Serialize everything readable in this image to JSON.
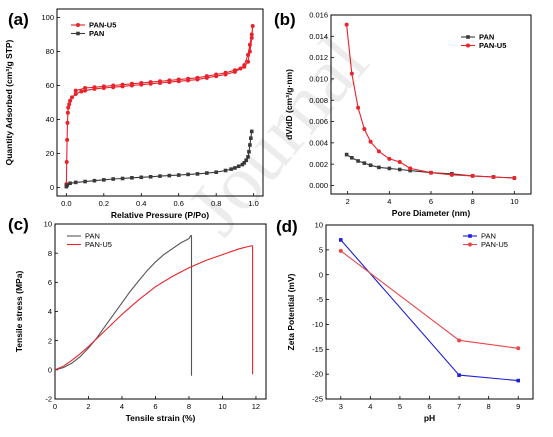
{
  "watermark": "Journal",
  "chart_data": [
    {
      "panel": "(a)",
      "type": "line",
      "xlabel": "Relative Pressure (P/Po)",
      "ylabel": "Quantity Adsorbed (cm³/g STP)",
      "xlim": [
        -0.05,
        1.05
      ],
      "ylim": [
        -5,
        105
      ],
      "xticks": [
        "0.0",
        "0.2",
        "0.4",
        "0.6",
        "0.8",
        "1.0"
      ],
      "yticks": [
        "0",
        "20",
        "40",
        "60",
        "80",
        "100"
      ],
      "legend": "top-left",
      "marker": true,
      "series": [
        {
          "name": "PAN-U5",
          "color": "#e8232b",
          "x": [
            0.0,
            0.002,
            0.004,
            0.006,
            0.008,
            0.01,
            0.015,
            0.02,
            0.03,
            0.05,
            0.08,
            0.1,
            0.15,
            0.2,
            0.25,
            0.3,
            0.35,
            0.4,
            0.45,
            0.5,
            0.55,
            0.6,
            0.65,
            0.7,
            0.75,
            0.8,
            0.85,
            0.9,
            0.93,
            0.95,
            0.97,
            0.98,
            0.99,
            0.995,
            0.99,
            0.98,
            0.97,
            0.95,
            0.9,
            0.85,
            0.8,
            0.75,
            0.7,
            0.65,
            0.6,
            0.55,
            0.5,
            0.45,
            0.4,
            0.35,
            0.3,
            0.25,
            0.2,
            0.15,
            0.1,
            0.05
          ],
          "values": [
            2,
            15,
            28,
            38,
            44,
            47,
            49,
            51,
            53,
            55,
            56.5,
            57,
            58,
            58.5,
            59,
            59.5,
            60,
            60.5,
            61,
            61.5,
            62,
            62.5,
            63,
            63.5,
            64.5,
            65.5,
            66.5,
            68,
            70,
            72,
            78,
            84,
            90,
            95,
            88,
            80,
            74,
            71,
            69,
            67.5,
            66.5,
            65.5,
            64.5,
            64,
            63.5,
            63,
            62.5,
            62,
            61.5,
            61,
            60.5,
            60,
            59.5,
            59,
            58.5,
            57
          ]
        },
        {
          "name": "PAN",
          "color": "#3a3a3a",
          "x": [
            0.0,
            0.005,
            0.02,
            0.05,
            0.1,
            0.15,
            0.2,
            0.25,
            0.3,
            0.35,
            0.4,
            0.45,
            0.5,
            0.55,
            0.6,
            0.65,
            0.7,
            0.75,
            0.8,
            0.85,
            0.88,
            0.9,
            0.92,
            0.94,
            0.95,
            0.96,
            0.97,
            0.975,
            0.98,
            0.985,
            0.99
          ],
          "values": [
            0.5,
            1.5,
            2.5,
            3,
            3.5,
            4,
            4.5,
            5,
            5.3,
            5.7,
            6,
            6.3,
            6.7,
            7,
            7.3,
            7.7,
            8,
            8.5,
            9,
            10,
            10.8,
            11.5,
            12.5,
            13.5,
            14.5,
            16,
            18,
            21,
            25,
            29,
            33
          ]
        }
      ]
    },
    {
      "panel": "(b)",
      "type": "line",
      "xlabel": "Pore Diameter (nm)",
      "ylabel": "dV/dD (cm³/g·nm)",
      "xlim": [
        1.2,
        10.8
      ],
      "ylim": [
        -0.0008,
        0.016
      ],
      "xticks": [
        "2",
        "4",
        "6",
        "8",
        "10"
      ],
      "yticks": [
        "0.000",
        "0.002",
        "0.004",
        "0.006",
        "0.008",
        "0.010",
        "0.012",
        "0.014",
        "0.016"
      ],
      "legend": "top-right",
      "marker": true,
      "series": [
        {
          "name": "PAN",
          "color": "#3a3a3a",
          "x": [
            1.95,
            2.2,
            2.5,
            2.8,
            3.1,
            3.5,
            4.0,
            4.5,
            5.0,
            6.0,
            7.0,
            8.0,
            9.0,
            10.0
          ],
          "values": [
            0.0029,
            0.0026,
            0.0023,
            0.0021,
            0.0019,
            0.0017,
            0.0016,
            0.0015,
            0.0014,
            0.0012,
            0.0011,
            0.0009,
            0.0008,
            0.0007
          ]
        },
        {
          "name": "PAN-U5",
          "color": "#e8232b",
          "x": [
            1.95,
            2.2,
            2.5,
            2.8,
            3.1,
            3.5,
            4.0,
            4.5,
            5.0,
            6.0,
            7.0,
            8.0,
            9.0,
            10.0
          ],
          "values": [
            0.0151,
            0.0105,
            0.0073,
            0.0053,
            0.0041,
            0.0032,
            0.0025,
            0.0022,
            0.0016,
            0.0012,
            0.001,
            0.0009,
            0.0008,
            0.0007
          ]
        }
      ]
    },
    {
      "panel": "(c)",
      "type": "line",
      "xlabel": "Tensile strain (%)",
      "ylabel": "Tensile stress (MPa)",
      "xlim": [
        0,
        12.6
      ],
      "ylim": [
        -2,
        10
      ],
      "xticks": [
        "0",
        "2",
        "4",
        "6",
        "8",
        "10",
        "12"
      ],
      "yticks": [
        "-2",
        "0",
        "2",
        "4",
        "6",
        "8",
        "10"
      ],
      "legend": "top-left",
      "marker": false,
      "series": [
        {
          "name": "PAN",
          "color": "#555555",
          "x": [
            0,
            0.5,
            1,
            1.5,
            2,
            2.5,
            3,
            3.5,
            4,
            4.5,
            5,
            5.5,
            6,
            6.5,
            7,
            7.5,
            8,
            8.1,
            8.15,
            8.15
          ],
          "values": [
            0,
            0.15,
            0.45,
            0.9,
            1.5,
            2.2,
            3.0,
            3.8,
            4.6,
            5.4,
            6.1,
            6.8,
            7.4,
            7.9,
            8.3,
            8.7,
            9.0,
            9.2,
            9.2,
            -0.4
          ]
        },
        {
          "name": "PAN-U5",
          "color": "#e8232b",
          "x": [
            0,
            0.5,
            1,
            1.5,
            2,
            3,
            4,
            5,
            6,
            7,
            8,
            9,
            10,
            11,
            11.7,
            11.8,
            11.8
          ],
          "values": [
            0,
            0.25,
            0.65,
            1.1,
            1.6,
            2.7,
            3.8,
            4.8,
            5.7,
            6.4,
            7.0,
            7.5,
            7.9,
            8.3,
            8.5,
            8.5,
            -0.3
          ]
        }
      ]
    },
    {
      "panel": "(d)",
      "type": "line",
      "xlabel": "pH",
      "ylabel": "Zeta Potential (mV)",
      "xlim": [
        2.5,
        9.5
      ],
      "ylim": [
        -25,
        10
      ],
      "xticks": [
        "3",
        "4",
        "5",
        "6",
        "7",
        "8",
        "9"
      ],
      "yticks": [
        "-25",
        "-20",
        "-15",
        "-10",
        "-5",
        "0",
        "5",
        "10"
      ],
      "legend": "top-right",
      "marker": true,
      "series": [
        {
          "name": "PAN",
          "color": "#1f1fd8",
          "x": [
            3,
            7,
            9
          ],
          "values": [
            7.0,
            -20.2,
            -21.3
          ]
        },
        {
          "name": "PAN-U5",
          "color": "#e8474c",
          "x": [
            3,
            7,
            9
          ],
          "values": [
            4.8,
            -13.2,
            -14.8
          ]
        }
      ]
    }
  ]
}
